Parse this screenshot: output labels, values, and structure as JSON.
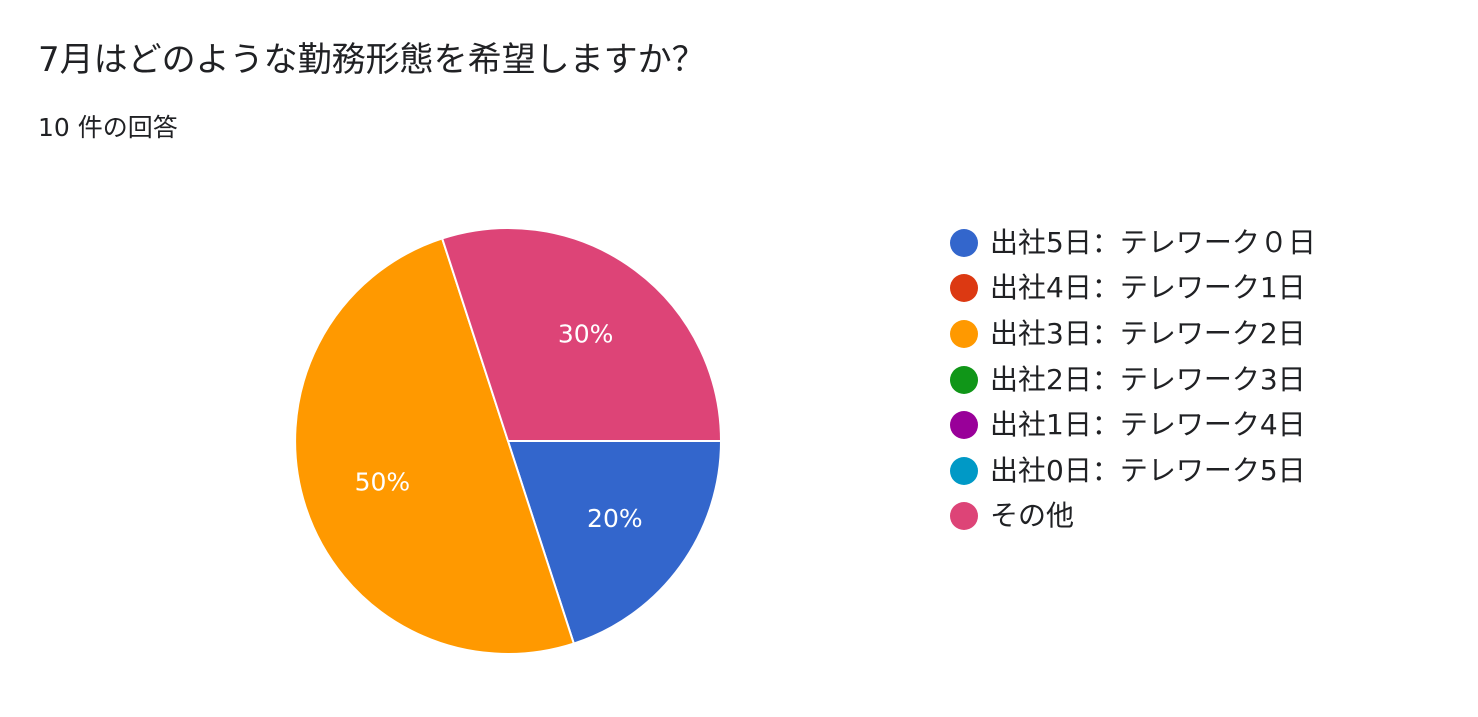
{
  "chart_data": {
    "type": "pie",
    "title": "7月はどのような勤務形態を希望しますか？",
    "subtitle": "10 件の回答",
    "legend_position": "right",
    "slices": [
      {
        "label": "出社5日：テレワーク０日",
        "value": 20,
        "display": "20%",
        "color": "#3366cc"
      },
      {
        "label": "出社4日：テレワーク1日",
        "value": 0,
        "display": "",
        "color": "#dc3912"
      },
      {
        "label": "出社3日：テレワーク2日",
        "value": 50,
        "display": "50%",
        "color": "#ff9900"
      },
      {
        "label": "出社2日：テレワーク3日",
        "value": 0,
        "display": "",
        "color": "#109618"
      },
      {
        "label": "出社1日：テレワーク4日",
        "value": 0,
        "display": "",
        "color": "#990099"
      },
      {
        "label": "出社0日：テレワーク5日",
        "value": 0,
        "display": "",
        "color": "#0099c6"
      },
      {
        "label": "その他",
        "value": 30,
        "display": "30%",
        "color": "#dd4477"
      }
    ]
  }
}
